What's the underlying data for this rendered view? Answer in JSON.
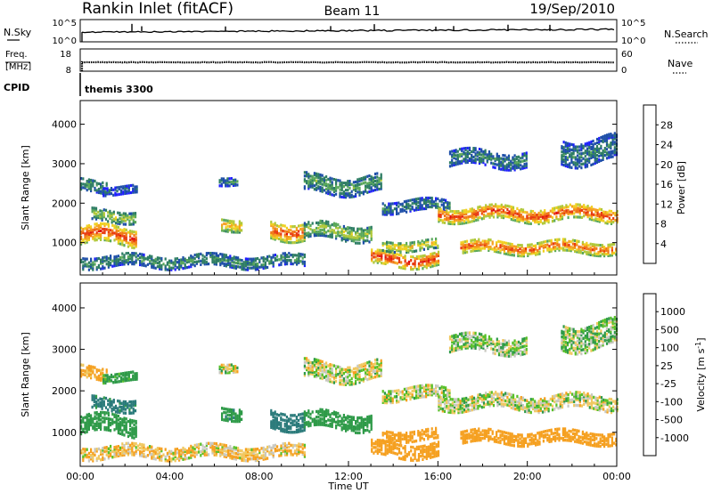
{
  "header": {
    "station": "Rankin Inlet (fitACF)",
    "beam": "Beam 11",
    "date": "19/Sep/2010"
  },
  "panels": {
    "nsky_label": "N.Sky",
    "nsearch_label": "N.Search",
    "nsky_ticks": [
      "10^5",
      "10^0"
    ],
    "nsearch_ticks": [
      "10^5",
      "10^0"
    ],
    "freq_label_1": "Freq.",
    "freq_label_2": "[MHz]",
    "freq_ticks": [
      "18",
      "8"
    ],
    "nave_label": "Nave",
    "nave_ticks": [
      "60",
      "0"
    ],
    "cpid_label": "CPID",
    "cpid_value": "themis 3300"
  },
  "colors": {
    "power_scale": [
      "#1f1fff",
      "#1e4fa8",
      "#2e7d64",
      "#5aa85a",
      "#b0c83a",
      "#f0d020",
      "#f5a020",
      "#f07818",
      "#e83a10",
      "#e01010"
    ],
    "velocity_scale": [
      "#e01010",
      "#f06010",
      "#f5a020",
      "#f0c860",
      "#c8c8c0",
      "#c8c8c0",
      "#58c028",
      "#2e9a48",
      "#2a7a7a",
      "#2448b0"
    ]
  },
  "chart_data": {
    "type": "heatmap",
    "xlabel": "Time UT",
    "ylabel": "Slant Range [km]",
    "x_ticks": [
      "00:00",
      "04:00",
      "08:00",
      "12:00",
      "16:00",
      "20:00",
      "00:00"
    ],
    "x_range_hours": [
      0,
      24
    ],
    "y_ticks": [
      "1000",
      "2000",
      "3000",
      "4000"
    ],
    "y_range_km": [
      180,
      4600
    ],
    "power": {
      "colorbar_label": "Power [dB]",
      "colorbar_ticks": [
        "4",
        "8",
        "12",
        "16",
        "20",
        "24",
        "28"
      ],
      "range": [
        0,
        30
      ]
    },
    "velocity": {
      "colorbar_label": "Velocity [m s^-1]",
      "colorbar_ticks": [
        "1000",
        "500",
        "100",
        "25",
        "-25",
        "-100",
        "-500",
        "-1000"
      ]
    },
    "echo_regions": [
      {
        "t_start": 0.0,
        "t_end": 2.5,
        "r_center": 1150,
        "r_width": 450,
        "power": 27,
        "velocity": 300
      },
      {
        "t_start": 0.5,
        "t_end": 2.5,
        "r_center": 1650,
        "r_width": 300,
        "power": 14,
        "velocity": 600
      },
      {
        "t_start": 0.0,
        "t_end": 1.2,
        "r_center": 2400,
        "r_width": 300,
        "power": 10,
        "velocity": -150
      },
      {
        "t_start": 1.0,
        "t_end": 2.5,
        "r_center": 2300,
        "r_width": 200,
        "power": 6,
        "velocity": 200
      },
      {
        "t_start": 0.0,
        "t_end": 10.0,
        "r_center": 500,
        "r_width": 300,
        "power": 9,
        "velocity": -80
      },
      {
        "t_start": 6.3,
        "t_end": 7.2,
        "r_center": 1450,
        "r_width": 300,
        "power": 20,
        "velocity": 400
      },
      {
        "t_start": 6.2,
        "t_end": 7.0,
        "r_center": 2550,
        "r_width": 200,
        "power": 8,
        "velocity": 0
      },
      {
        "t_start": 8.5,
        "t_end": 10.0,
        "r_center": 1300,
        "r_width": 450,
        "power": 26,
        "velocity": 800
      },
      {
        "t_start": 10.0,
        "t_end": 13.0,
        "r_center": 1250,
        "r_width": 400,
        "power": 14,
        "velocity": 300
      },
      {
        "t_start": 10.0,
        "t_end": 13.5,
        "r_center": 2450,
        "r_width": 450,
        "power": 10,
        "velocity": 0
      },
      {
        "t_start": 13.0,
        "t_end": 16.0,
        "r_center": 550,
        "r_width": 350,
        "power": 28,
        "velocity": -350
      },
      {
        "t_start": 13.5,
        "t_end": 16.0,
        "r_center": 900,
        "r_width": 250,
        "power": 18,
        "velocity": -250
      },
      {
        "t_start": 13.5,
        "t_end": 16.5,
        "r_center": 1900,
        "r_width": 300,
        "power": 8,
        "velocity": 0
      },
      {
        "t_start": 16.0,
        "t_end": 24.0,
        "r_center": 1700,
        "r_width": 350,
        "power": 26,
        "velocity": 0
      },
      {
        "t_start": 17.0,
        "t_end": 24.0,
        "r_center": 850,
        "r_width": 300,
        "power": 25,
        "velocity": -250
      },
      {
        "t_start": 16.5,
        "t_end": 20.0,
        "r_center": 3100,
        "r_width": 400,
        "power": 8,
        "velocity": 50
      },
      {
        "t_start": 21.5,
        "t_end": 24.0,
        "r_center": 3300,
        "r_width": 600,
        "power": 8,
        "velocity": 60
      }
    ]
  }
}
